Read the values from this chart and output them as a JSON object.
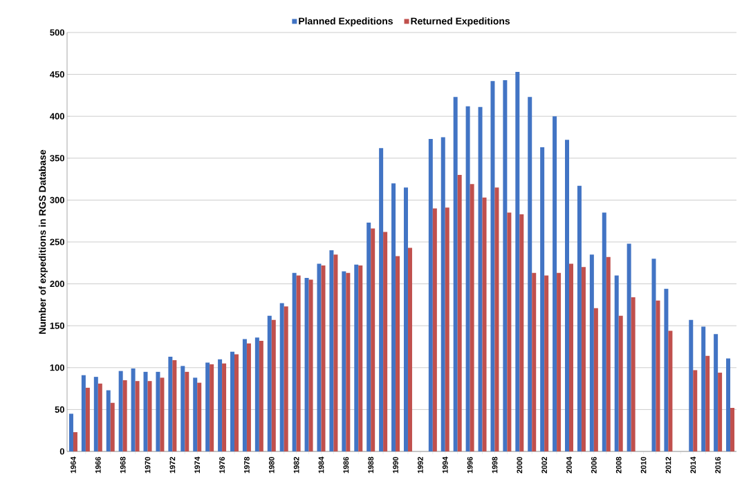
{
  "chart_data": {
    "type": "bar",
    "ylabel": "Number of expeditions in RGS Database",
    "categories": [
      "1964",
      null,
      "1966",
      null,
      "1968",
      null,
      "1970",
      null,
      "1972",
      null,
      "1974",
      null,
      "1976",
      null,
      "1978",
      null,
      "1980",
      null,
      "1982",
      null,
      "1984",
      null,
      "1986",
      null,
      "1988",
      null,
      "1990",
      null,
      "1992",
      null,
      "1994",
      null,
      "1996",
      null,
      "1998",
      null,
      "2000",
      null,
      "2002",
      null,
      "2004",
      null,
      "2006",
      null,
      "2008",
      null,
      "2010",
      null,
      "2012",
      null,
      "2014",
      null,
      "2016",
      null
    ],
    "series": [
      {
        "name": "Planned Expeditions",
        "color": "#4274c4",
        "values": [
          45,
          91,
          89,
          73,
          96,
          99,
          95,
          95,
          113,
          102,
          88,
          106,
          110,
          119,
          134,
          136,
          162,
          177,
          213,
          207,
          224,
          240,
          215,
          223,
          273,
          362,
          320,
          315,
          null,
          373,
          375,
          423,
          412,
          411,
          442,
          443,
          453,
          423,
          363,
          400,
          372,
          317,
          235,
          285,
          210,
          248,
          null,
          230,
          194,
          null,
          157,
          149,
          140,
          111
        ]
      },
      {
        "name": "Returned Expeditions",
        "color": "#c0504d",
        "values": [
          23,
          76,
          81,
          58,
          85,
          84,
          84,
          88,
          109,
          95,
          82,
          104,
          105,
          116,
          129,
          132,
          157,
          173,
          210,
          205,
          222,
          235,
          213,
          222,
          266,
          262,
          233,
          243,
          null,
          290,
          291,
          330,
          319,
          303,
          315,
          285,
          283,
          213,
          210,
          213,
          224,
          220,
          171,
          232,
          162,
          184,
          null,
          180,
          144,
          null,
          97,
          114,
          94,
          52
        ]
      }
    ],
    "ylim": [
      0,
      500
    ],
    "yticks": [
      0,
      50,
      100,
      150,
      200,
      250,
      300,
      350,
      400,
      450,
      500
    ],
    "grid": "y",
    "legend": "top"
  }
}
